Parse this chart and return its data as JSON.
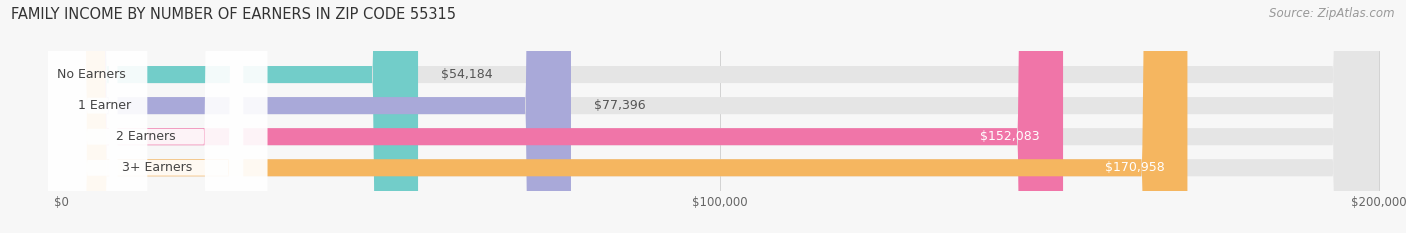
{
  "title": "FAMILY INCOME BY NUMBER OF EARNERS IN ZIP CODE 55315",
  "source": "Source: ZipAtlas.com",
  "categories": [
    "No Earners",
    "1 Earner",
    "2 Earners",
    "3+ Earners"
  ],
  "values": [
    54184,
    77396,
    152083,
    170958
  ],
  "bar_colors": [
    "#72cdc9",
    "#a9a9d9",
    "#f075a8",
    "#f5b660"
  ],
  "label_colors": [
    "#555555",
    "#555555",
    "#ffffff",
    "#ffffff"
  ],
  "value_labels": [
    "$54,184",
    "$77,396",
    "$152,083",
    "$170,958"
  ],
  "xlim": [
    0,
    200000
  ],
  "xticks": [
    0,
    100000,
    200000
  ],
  "xtick_labels": [
    "$0",
    "$100,000",
    "$200,000"
  ],
  "bg_color": "#f7f7f7",
  "bar_bg_color": "#e5e5e5",
  "title_fontsize": 10.5,
  "source_fontsize": 8.5,
  "label_fontsize": 9,
  "value_fontsize": 9
}
